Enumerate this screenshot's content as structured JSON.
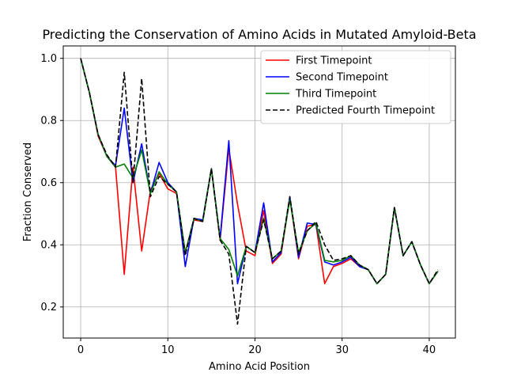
{
  "chart_data": {
    "type": "line",
    "title": "Predicting the Conservation of Amino Acids in Mutated Amyloid-Beta",
    "xlabel": "Amino Acid Position",
    "ylabel": "Fraction Conserved",
    "xlim": [
      -2,
      43
    ],
    "ylim": [
      0.1,
      1.04
    ],
    "xticks": [
      0,
      10,
      20,
      30,
      40
    ],
    "yticks": [
      0.2,
      0.4,
      0.6,
      0.8,
      1.0
    ],
    "xtick_labels": [
      "0",
      "10",
      "20",
      "30",
      "40"
    ],
    "ytick_labels": [
      "0.2",
      "0.4",
      "0.6",
      "0.8",
      "1.0"
    ],
    "grid": true,
    "legend_position": "top-right",
    "x": [
      0,
      1,
      2,
      3,
      4,
      5,
      6,
      7,
      8,
      9,
      10,
      11,
      12,
      13,
      14,
      15,
      16,
      17,
      18,
      19,
      20,
      21,
      22,
      23,
      24,
      25,
      26,
      27,
      28,
      29,
      30,
      31,
      32,
      33,
      34,
      35,
      36,
      37,
      38,
      39,
      40,
      41
    ],
    "series": [
      {
        "name": "First Timepoint",
        "color": "#ff0000",
        "dash": "solid",
        "values": [
          1.0,
          0.89,
          0.75,
          0.685,
          0.65,
          0.305,
          0.65,
          0.38,
          0.575,
          0.63,
          0.58,
          0.565,
          0.375,
          0.48,
          0.475,
          0.645,
          0.415,
          0.71,
          0.53,
          0.38,
          0.365,
          0.51,
          0.34,
          0.37,
          0.55,
          0.355,
          0.46,
          0.465,
          0.275,
          0.33,
          0.34,
          0.355,
          0.33,
          0.32,
          0.275,
          0.305,
          0.52,
          0.365,
          0.41,
          0.335,
          0.275,
          0.315
        ]
      },
      {
        "name": "Second Timepoint",
        "color": "#0000ff",
        "dash": "solid",
        "values": [
          1.0,
          0.89,
          0.755,
          0.685,
          0.655,
          0.84,
          0.6,
          0.725,
          0.565,
          0.665,
          0.6,
          0.57,
          0.33,
          0.485,
          0.48,
          0.645,
          0.42,
          0.735,
          0.275,
          0.395,
          0.375,
          0.535,
          0.345,
          0.375,
          0.555,
          0.36,
          0.47,
          0.465,
          0.345,
          0.335,
          0.345,
          0.36,
          0.33,
          0.32,
          0.275,
          0.305,
          0.52,
          0.365,
          0.41,
          0.335,
          0.275,
          0.315
        ]
      },
      {
        "name": "Third Timepoint",
        "color": "#008000",
        "dash": "solid",
        "values": [
          1.0,
          0.89,
          0.755,
          0.685,
          0.65,
          0.66,
          0.615,
          0.705,
          0.565,
          0.635,
          0.595,
          0.57,
          0.375,
          0.485,
          0.475,
          0.645,
          0.42,
          0.385,
          0.3,
          0.395,
          0.375,
          0.485,
          0.355,
          0.38,
          0.545,
          0.375,
          0.445,
          0.47,
          0.35,
          0.345,
          0.35,
          0.365,
          0.335,
          0.32,
          0.275,
          0.305,
          0.52,
          0.365,
          0.41,
          0.335,
          0.275,
          0.315
        ]
      },
      {
        "name": "Predicted Fourth Timepoint",
        "color": "#000000",
        "dash": "dashed",
        "values": [
          1.0,
          0.89,
          0.755,
          0.69,
          0.65,
          0.955,
          0.6,
          0.935,
          0.555,
          0.62,
          0.595,
          0.57,
          0.365,
          0.485,
          0.475,
          0.645,
          0.415,
          0.37,
          0.145,
          0.395,
          0.375,
          0.48,
          0.355,
          0.38,
          0.555,
          0.37,
          0.445,
          0.475,
          0.4,
          0.35,
          0.355,
          0.365,
          0.335,
          0.32,
          0.275,
          0.305,
          0.52,
          0.365,
          0.41,
          0.335,
          0.275,
          0.32
        ]
      }
    ]
  }
}
